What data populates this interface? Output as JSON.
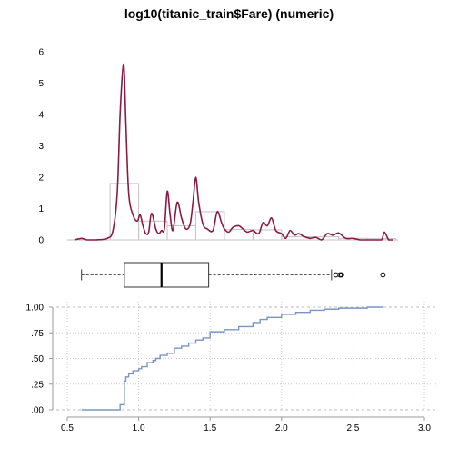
{
  "chart_data": [
    {
      "type": "histogram-density",
      "title": "log10(titanic_train$Fare) (numeric)",
      "ylim": [
        0,
        6
      ],
      "y_ticks": [
        "0",
        "1",
        "2",
        "3",
        "4",
        "5",
        "6"
      ],
      "histogram": {
        "bins": [
          {
            "x0": 0.8,
            "x1": 1.0,
            "density": 1.8
          },
          {
            "x0": 1.0,
            "x1": 1.2,
            "density": 0.6
          },
          {
            "x0": 1.2,
            "x1": 1.4,
            "density": 0.45
          },
          {
            "x0": 1.4,
            "x1": 1.6,
            "density": 0.9
          },
          {
            "x0": 1.6,
            "x1": 1.8,
            "density": 0.33
          },
          {
            "x0": 1.8,
            "x1": 2.0,
            "density": 0.32
          },
          {
            "x0": 2.0,
            "x1": 2.2,
            "density": 0.1
          },
          {
            "x0": 2.2,
            "x1": 2.4,
            "density": 0.1
          },
          {
            "x0": 2.4,
            "x1": 2.6,
            "density": 0.05
          },
          {
            "x0": 2.6,
            "x1": 2.8,
            "density": 0.04
          }
        ]
      },
      "density": {
        "color": "#8b1a44",
        "x": [
          0.55,
          0.6,
          0.64,
          0.7,
          0.78,
          0.82,
          0.85,
          0.87,
          0.89,
          0.9,
          0.91,
          0.93,
          0.96,
          0.99,
          1.01,
          1.03,
          1.05,
          1.07,
          1.09,
          1.12,
          1.14,
          1.16,
          1.18,
          1.2,
          1.22,
          1.24,
          1.27,
          1.3,
          1.33,
          1.36,
          1.38,
          1.4,
          1.42,
          1.45,
          1.48,
          1.52,
          1.55,
          1.58,
          1.6,
          1.63,
          1.66,
          1.7,
          1.73,
          1.76,
          1.8,
          1.84,
          1.87,
          1.9,
          1.93,
          1.96,
          2.0,
          2.03,
          2.06,
          2.09,
          2.12,
          2.16,
          2.2,
          2.24,
          2.28,
          2.32,
          2.36,
          2.4,
          2.45,
          2.5,
          2.55,
          2.6,
          2.65,
          2.7,
          2.72,
          2.75,
          2.78
        ],
        "y": [
          0.0,
          0.05,
          0.0,
          0.0,
          0.05,
          0.3,
          1.5,
          4.0,
          5.5,
          5.3,
          3.8,
          1.5,
          0.8,
          0.6,
          0.8,
          0.45,
          0.2,
          0.25,
          0.85,
          0.35,
          0.2,
          0.3,
          0.35,
          1.55,
          0.8,
          0.3,
          1.2,
          0.7,
          0.35,
          0.5,
          1.2,
          2.0,
          1.2,
          0.5,
          0.35,
          0.3,
          0.9,
          0.55,
          0.35,
          0.25,
          0.4,
          0.45,
          0.35,
          0.25,
          0.3,
          0.2,
          0.55,
          0.45,
          0.7,
          0.3,
          0.2,
          0.05,
          0.3,
          0.15,
          0.2,
          0.1,
          0.05,
          0.08,
          0.0,
          0.2,
          0.15,
          0.22,
          0.05,
          0.05,
          0.0,
          0.0,
          0.0,
          0.0,
          0.25,
          0.0,
          0.0
        ]
      }
    },
    {
      "type": "boxplot",
      "whisker_low": 0.6,
      "q1": 0.9,
      "median": 1.16,
      "q3": 1.49,
      "whisker_high": 2.35,
      "outliers": [
        2.38,
        2.41,
        2.42,
        2.71
      ]
    },
    {
      "type": "ecdf",
      "color": "#7b95c3",
      "xlim": [
        0.5,
        3.0
      ],
      "x_ticks": [
        "0.5",
        "1.0",
        "1.5",
        "2.0",
        "2.5",
        "3.0"
      ],
      "ylim": [
        0,
        1
      ],
      "y_ticks": [
        "0",
        ".25",
        ".50",
        ".75",
        "1.00"
      ],
      "x": [
        0.6,
        0.85,
        0.87,
        0.9,
        0.91,
        0.93,
        0.96,
        1.0,
        1.02,
        1.06,
        1.1,
        1.12,
        1.15,
        1.2,
        1.25,
        1.3,
        1.35,
        1.4,
        1.45,
        1.5,
        1.6,
        1.7,
        1.8,
        1.85,
        1.9,
        2.0,
        2.1,
        2.2,
        2.3,
        2.4,
        2.5,
        2.6,
        2.71
      ],
      "y": [
        0.0,
        0.0,
        0.05,
        0.28,
        0.32,
        0.35,
        0.38,
        0.4,
        0.42,
        0.46,
        0.48,
        0.5,
        0.53,
        0.55,
        0.6,
        0.62,
        0.65,
        0.68,
        0.7,
        0.76,
        0.78,
        0.81,
        0.85,
        0.88,
        0.9,
        0.93,
        0.95,
        0.97,
        0.98,
        0.99,
        0.99,
        1.0,
        1.0
      ]
    }
  ]
}
